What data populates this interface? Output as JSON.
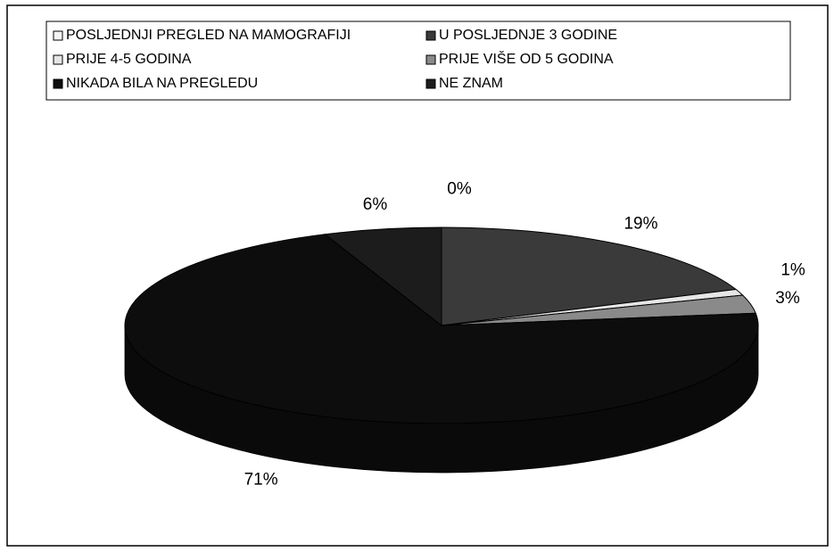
{
  "chart_data": {
    "type": "pie3d",
    "categories": [
      "POSLJEDNJI PREGLED NA MAMOGRAFIJI",
      "U POSLJEDNJE 3 GODINE",
      "PRIJE 4-5 GODINA",
      "PRIJE VIŠE OD 5 GODINA",
      "NIKADA BILA NA PREGLEDU",
      "NE ZNAM"
    ],
    "values": [
      0,
      19,
      1,
      3,
      71,
      6
    ],
    "value_labels": [
      "0%",
      "19%",
      "1%",
      "3%",
      "71%",
      "6%"
    ],
    "colors": [
      "#f4f4f4",
      "#3a3a3a",
      "#e6e6e6",
      "#8a8a8a",
      "#0d0d0d",
      "#1c1c1c"
    ],
    "legend": "top"
  }
}
